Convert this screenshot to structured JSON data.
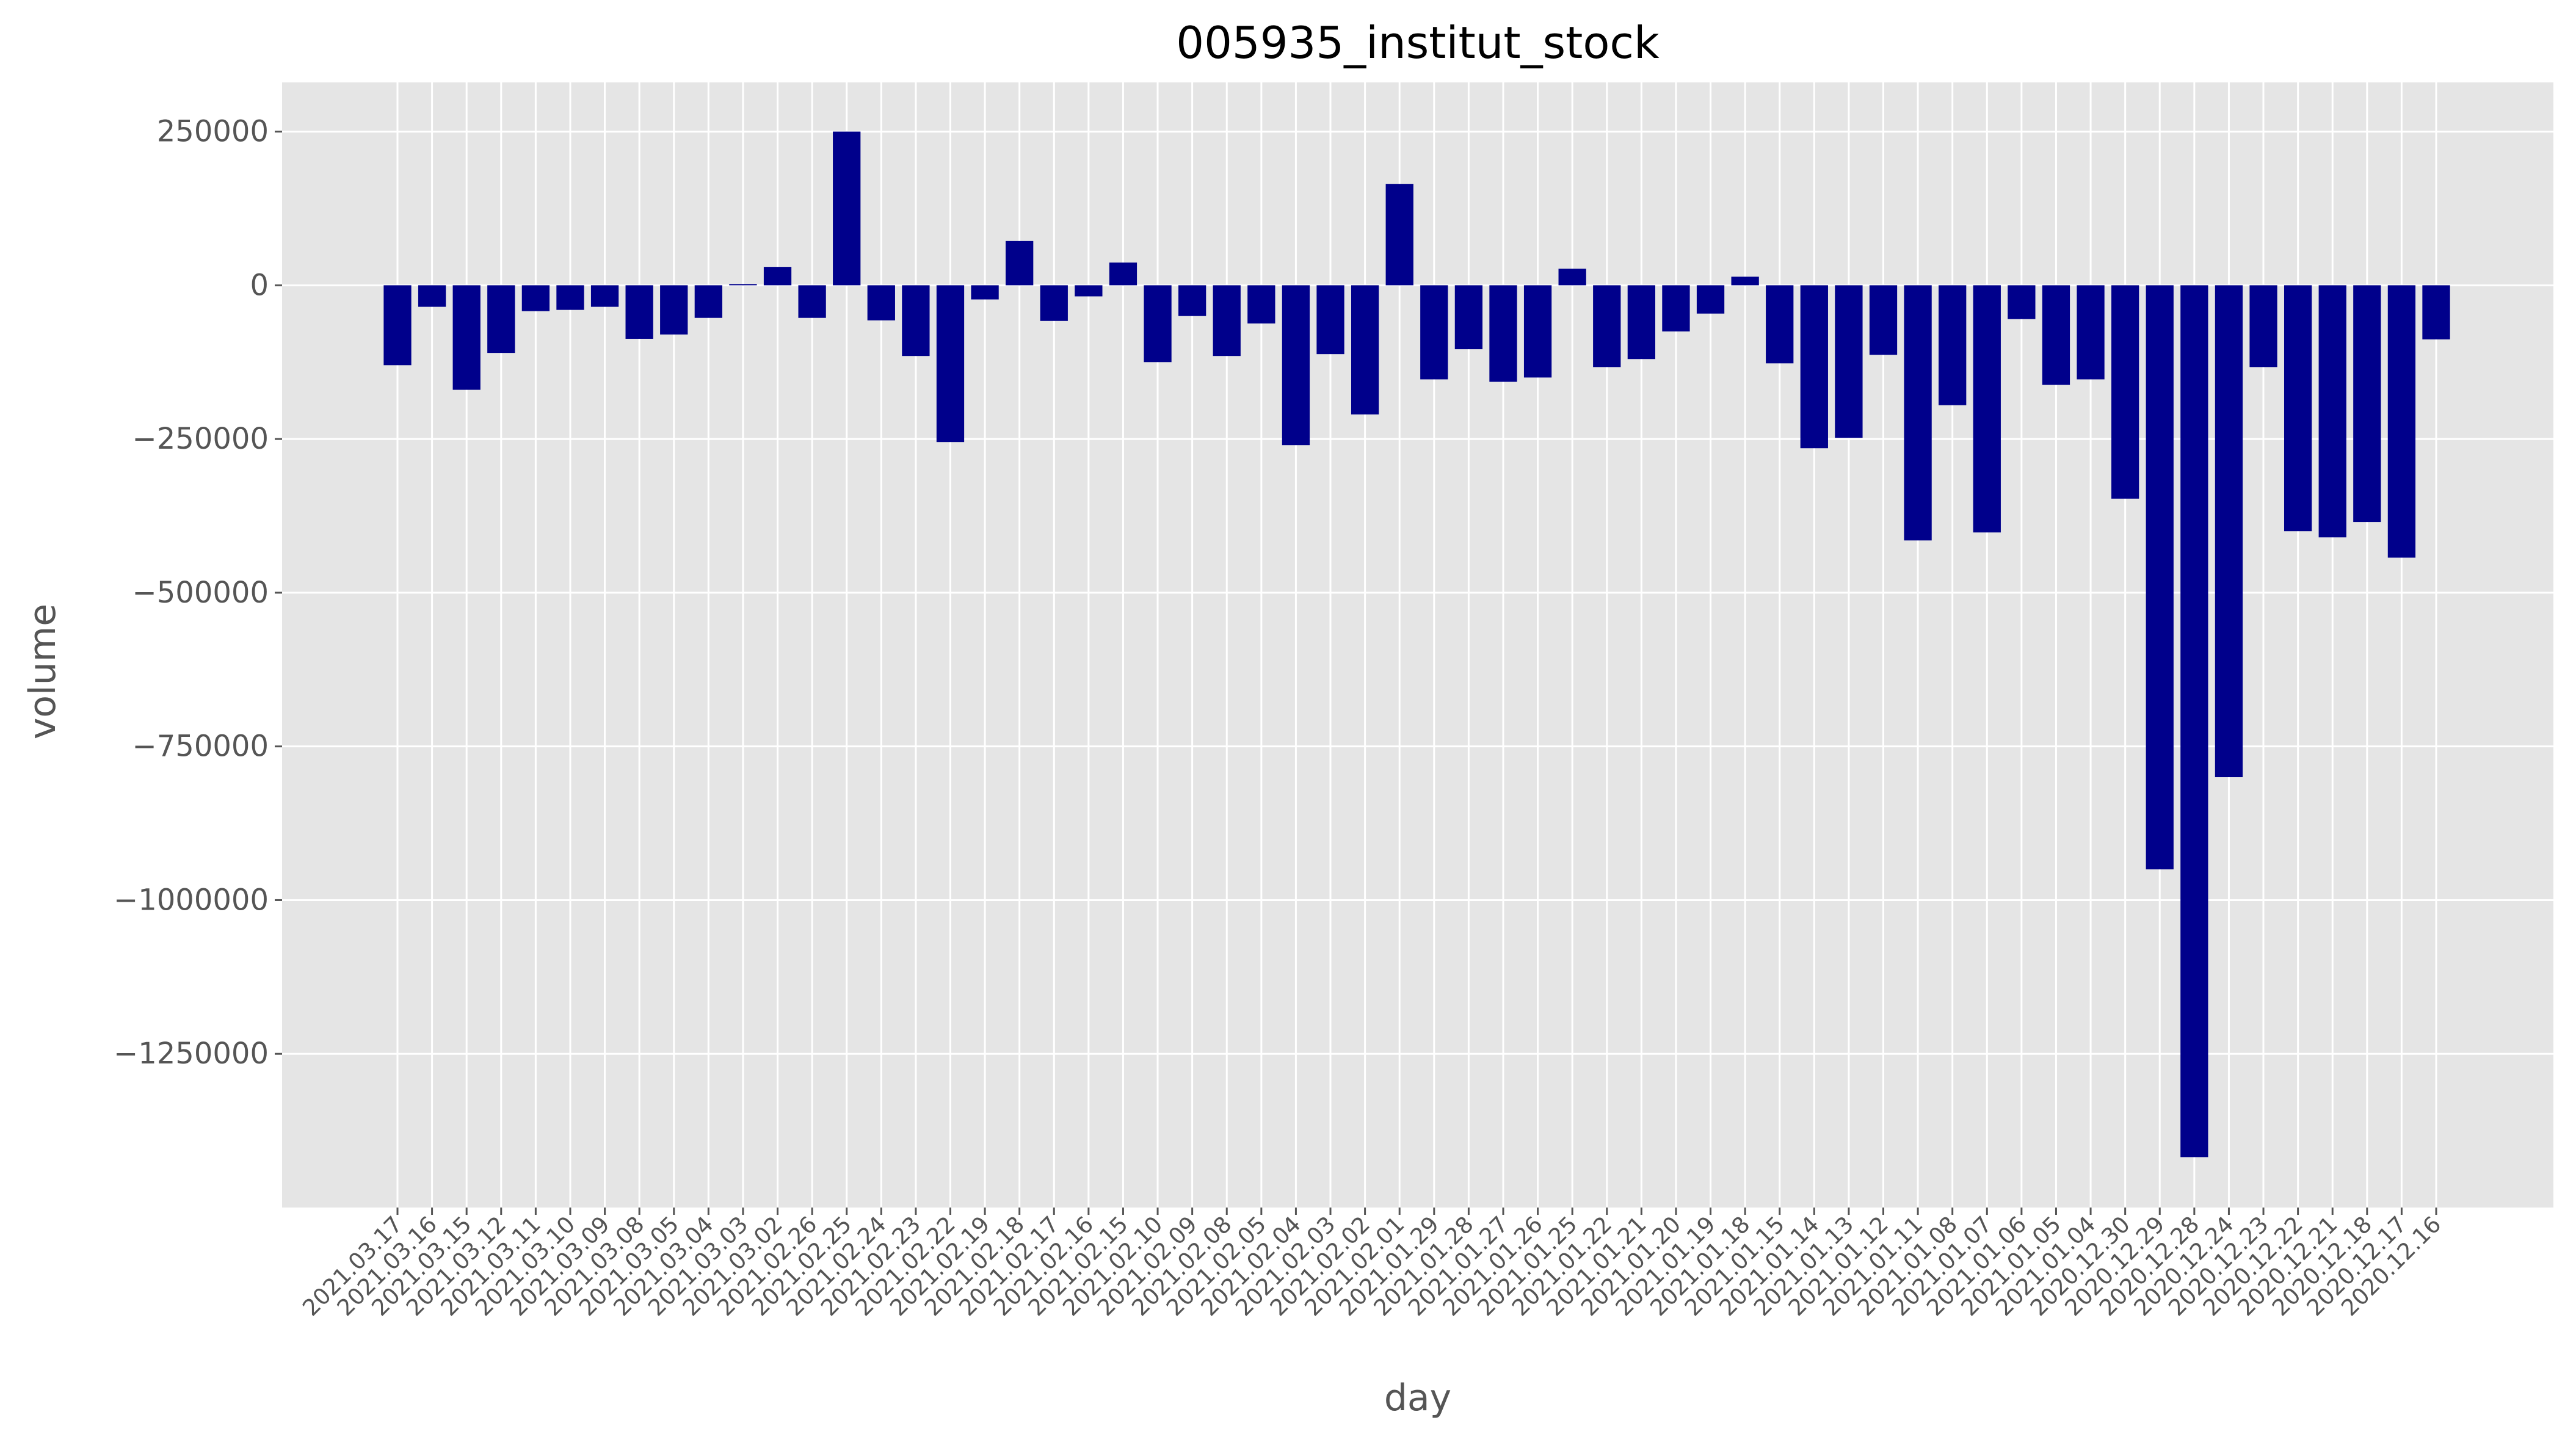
{
  "chart_data": {
    "type": "bar",
    "title": "005935_institut_stock",
    "xlabel": "day",
    "ylabel": "volume",
    "bar_color": "#00008b",
    "background_color": "#e5e5e5",
    "grid": true,
    "ylim": [
      -1500000,
      330000
    ],
    "yticks": [
      250000,
      0,
      -250000,
      -500000,
      -750000,
      -1000000,
      -1250000
    ],
    "ytick_labels": [
      "250000",
      "0",
      "−250000",
      "−500000",
      "−750000",
      "−1000000",
      "−1250000"
    ],
    "categories": [
      "2021.03.17",
      "2021.03.16",
      "2021.03.15",
      "2021.03.12",
      "2021.03.11",
      "2021.03.10",
      "2021.03.09",
      "2021.03.08",
      "2021.03.05",
      "2021.03.04",
      "2021.03.03",
      "2021.03.02",
      "2021.02.26",
      "2021.02.25",
      "2021.02.24",
      "2021.02.23",
      "2021.02.22",
      "2021.02.19",
      "2021.02.18",
      "2021.02.17",
      "2021.02.16",
      "2021.02.15",
      "2021.02.10",
      "2021.02.09",
      "2021.02.08",
      "2021.02.05",
      "2021.02.04",
      "2021.02.03",
      "2021.02.02",
      "2021.02.01",
      "2021.01.29",
      "2021.01.28",
      "2021.01.27",
      "2021.01.26",
      "2021.01.25",
      "2021.01.22",
      "2021.01.21",
      "2021.01.20",
      "2021.01.19",
      "2021.01.18",
      "2021.01.15",
      "2021.01.14",
      "2021.01.13",
      "2021.01.12",
      "2021.01.11",
      "2021.01.08",
      "2021.01.07",
      "2021.01.06",
      "2021.01.05",
      "2021.01.04",
      "2020.12.30",
      "2020.12.29",
      "2020.12.28",
      "2020.12.24",
      "2020.12.23",
      "2020.12.22",
      "2020.12.21",
      "2020.12.18",
      "2020.12.17",
      "2020.12.16"
    ],
    "values": [
      -130000,
      -35000,
      -170000,
      -110000,
      -42000,
      -40000,
      -35000,
      -87000,
      -80000,
      -53000,
      2000,
      30000,
      -53000,
      250000,
      -57000,
      -115000,
      -255000,
      -23000,
      72000,
      -58000,
      -18000,
      37000,
      -125000,
      -50000,
      -115000,
      -62000,
      -260000,
      -112000,
      -210000,
      165000,
      -153000,
      -104000,
      -157000,
      -150000,
      27000,
      -133000,
      -120000,
      -75000,
      -46000,
      14000,
      -127000,
      -265000,
      -248000,
      -113000,
      -415000,
      -195000,
      -402000,
      -55000,
      -162000,
      -153000,
      -347000,
      -950000,
      -1418000,
      -800000,
      -133000,
      -400000,
      -410000,
      -385000,
      -443000,
      -88000
    ]
  }
}
